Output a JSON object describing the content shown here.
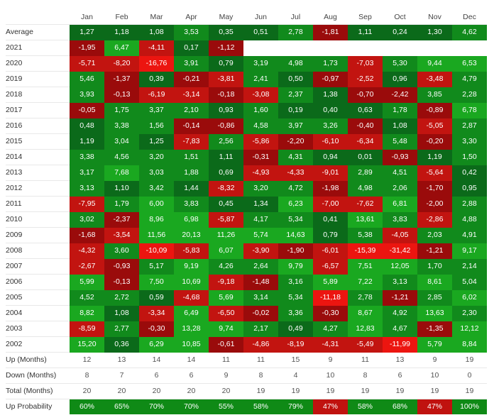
{
  "chart_data": {
    "type": "heatmap",
    "title": "",
    "columns": [
      "Jan",
      "Feb",
      "Mar",
      "Apr",
      "May",
      "Jun",
      "Jul",
      "Aug",
      "Sep",
      "Oct",
      "Nov",
      "Dec"
    ],
    "rows": [
      {
        "label": "Average",
        "values": [
          "1,27",
          "1,18",
          "1,08",
          "3,53",
          "0,35",
          "0,51",
          "2,78",
          "-1,81",
          "1,11",
          "0,24",
          "1,30",
          "4,62"
        ]
      },
      {
        "label": "2021",
        "values": [
          "-1,95",
          "6,47",
          "-4,11",
          "0,17",
          "-1,12",
          "",
          "",
          "",
          "",
          "",
          "",
          ""
        ]
      },
      {
        "label": "2020",
        "values": [
          "-5,71",
          "-8,20",
          "-16,76",
          "3,91",
          "0,79",
          "3,19",
          "4,98",
          "1,73",
          "-7,03",
          "5,30",
          "9,44",
          "6,53"
        ]
      },
      {
        "label": "2019",
        "values": [
          "5,46",
          "-1,37",
          "0,39",
          "-0,21",
          "-3,81",
          "2,41",
          "0,50",
          "-0,97",
          "-2,52",
          "0,96",
          "-3,48",
          "4,79"
        ]
      },
      {
        "label": "2018",
        "values": [
          "3,93",
          "-0,13",
          "-6,19",
          "-3,14",
          "-0,18",
          "-3,08",
          "2,37",
          "1,38",
          "-0,70",
          "-2,42",
          "3,85",
          "2,28"
        ]
      },
      {
        "label": "2017",
        "values": [
          "-0,05",
          "1,75",
          "3,37",
          "2,10",
          "0,93",
          "1,60",
          "0,19",
          "0,40",
          "0,63",
          "1,78",
          "-0,89",
          "6,78"
        ]
      },
      {
        "label": "2016",
        "values": [
          "0,48",
          "3,38",
          "1,56",
          "-0,14",
          "-0,86",
          "4,58",
          "3,97",
          "3,26",
          "-0,40",
          "1,08",
          "-5,05",
          "2,87"
        ]
      },
      {
        "label": "2015",
        "values": [
          "1,19",
          "3,04",
          "1,25",
          "-7,83",
          "2,56",
          "-5,86",
          "-2,20",
          "-6,10",
          "-6,34",
          "5,48",
          "-0,20",
          "3,30"
        ]
      },
      {
        "label": "2014",
        "values": [
          "3,38",
          "4,56",
          "3,20",
          "1,51",
          "1,11",
          "-0,31",
          "4,31",
          "0,94",
          "0,01",
          "-0,93",
          "1,19",
          "1,50"
        ]
      },
      {
        "label": "2013",
        "values": [
          "3,17",
          "7,68",
          "3,03",
          "1,88",
          "0,69",
          "-4,93",
          "-4,33",
          "-9,01",
          "2,89",
          "4,51",
          "-5,64",
          "0,42"
        ]
      },
      {
        "label": "2012",
        "values": [
          "3,13",
          "1,10",
          "3,42",
          "1,44",
          "-8,32",
          "3,20",
          "4,72",
          "-1,98",
          "4,98",
          "2,06",
          "-1,70",
          "0,95"
        ]
      },
      {
        "label": "2011",
        "values": [
          "-7,95",
          "1,79",
          "6,00",
          "3,83",
          "0,45",
          "1,34",
          "6,23",
          "-7,00",
          "-7,62",
          "6,81",
          "-2,00",
          "2,88"
        ]
      },
      {
        "label": "2010",
        "values": [
          "3,02",
          "-2,37",
          "8,96",
          "6,98",
          "-5,87",
          "4,17",
          "5,34",
          "0,41",
          "13,61",
          "3,83",
          "-2,86",
          "4,88"
        ]
      },
      {
        "label": "2009",
        "values": [
          "-1,68",
          "-3,54",
          "11,56",
          "20,13",
          "11,26",
          "5,74",
          "14,63",
          "0,79",
          "5,38",
          "-4,05",
          "2,03",
          "4,91"
        ]
      },
      {
        "label": "2008",
        "values": [
          "-4,32",
          "3,60",
          "-10,09",
          "-5,83",
          "6,07",
          "-3,90",
          "-1,90",
          "-6,01",
          "-15,39",
          "-31,42",
          "-1,21",
          "9,17"
        ]
      },
      {
        "label": "2007",
        "values": [
          "-2,67",
          "-0,93",
          "5,17",
          "9,19",
          "4,26",
          "2,64",
          "9,79",
          "-6,57",
          "7,51",
          "12,05",
          "1,70",
          "2,14"
        ]
      },
      {
        "label": "2006",
        "values": [
          "5,99",
          "-0,13",
          "7,50",
          "10,69",
          "-9,18",
          "-1,48",
          "3,16",
          "5,89",
          "7,22",
          "3,13",
          "8,61",
          "5,04"
        ]
      },
      {
        "label": "2005",
        "values": [
          "4,52",
          "2,72",
          "0,59",
          "-4,68",
          "5,69",
          "3,14",
          "5,34",
          "-11,18",
          "2,78",
          "-1,21",
          "2,85",
          "6,02"
        ]
      },
      {
        "label": "2004",
        "values": [
          "8,82",
          "1,08",
          "-3,34",
          "6,49",
          "-6,50",
          "-0,02",
          "3,36",
          "-0,30",
          "8,67",
          "4,92",
          "13,63",
          "2,30"
        ]
      },
      {
        "label": "2003",
        "values": [
          "-8,59",
          "2,77",
          "-0,30",
          "13,28",
          "9,74",
          "2,17",
          "0,49",
          "4,27",
          "12,83",
          "4,67",
          "-1,35",
          "12,12"
        ]
      },
      {
        "label": "2002",
        "values": [
          "15,20",
          "0,36",
          "6,29",
          "10,85",
          "-0,61",
          "-4,86",
          "-8,19",
          "-4,31",
          "-5,49",
          "-11,99",
          "5,79",
          "8,84"
        ]
      }
    ],
    "summary": [
      {
        "label": "Up (Months)",
        "values": [
          "12",
          "13",
          "14",
          "14",
          "11",
          "11",
          "15",
          "9",
          "11",
          "13",
          "9",
          "19"
        ]
      },
      {
        "label": "Down (Months)",
        "values": [
          "8",
          "7",
          "6",
          "6",
          "9",
          "8",
          "4",
          "10",
          "8",
          "6",
          "10",
          "0"
        ]
      },
      {
        "label": "Total (Months)",
        "values": [
          "20",
          "20",
          "20",
          "20",
          "20",
          "19",
          "19",
          "19",
          "19",
          "19",
          "19",
          "19"
        ]
      }
    ],
    "probability": {
      "label": "Up Probability",
      "values": [
        "60%",
        "65%",
        "70%",
        "70%",
        "55%",
        "58%",
        "79%",
        "47%",
        "58%",
        "68%",
        "47%",
        "100%"
      ]
    },
    "colors": {
      "green_dark": "#0b6a1a",
      "green_mid": "#118a1c",
      "green_bright": "#1aa820",
      "red_dark": "#9a0b0b",
      "red_mid": "#c21410",
      "red_bright": "#ec1510",
      "prob_green": "#0f8a16",
      "prob_red": "#c0120f"
    }
  }
}
